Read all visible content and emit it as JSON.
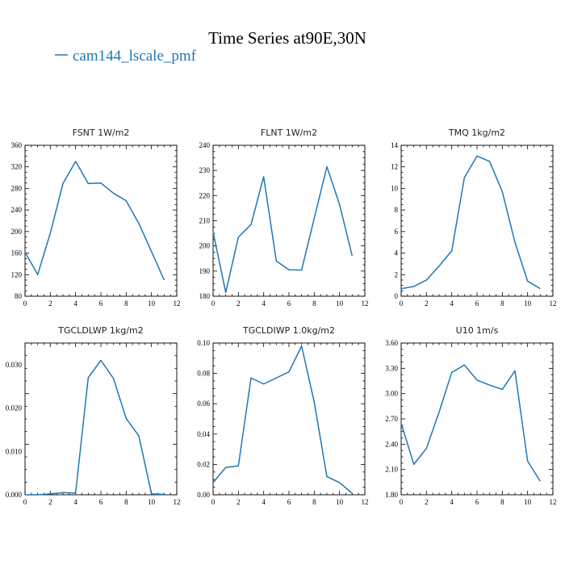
{
  "figure": {
    "title": "Time Series at90E,30N",
    "legend": {
      "label": "cam144_lscale_pmf",
      "color": "#1f77b4"
    }
  },
  "chart_data": [
    {
      "type": "line",
      "title": "FSNT   1W/m2",
      "xlim": [
        0,
        12
      ],
      "xticks": [
        0,
        2,
        4,
        6,
        8,
        10,
        12
      ],
      "xtick_labels": [
        "0",
        "2",
        "4",
        "6",
        "8",
        "10",
        "12"
      ],
      "ylim": [
        80,
        360
      ],
      "yticks": [
        80,
        120,
        160,
        200,
        240,
        280,
        320,
        360
      ],
      "ytick_labels": [
        "80",
        "120",
        "160",
        "200",
        "240",
        "280",
        "320",
        "360"
      ],
      "x": [
        0,
        1,
        2,
        3,
        4,
        5,
        6,
        7,
        8,
        9,
        10,
        11
      ],
      "series": [
        {
          "name": "cam144_lscale_pmf",
          "color": "#1f77b4",
          "values": [
            162,
            120,
            197,
            289,
            330,
            289,
            290,
            271,
            257,
            215,
            163,
            110
          ]
        }
      ]
    },
    {
      "type": "line",
      "title": "FLNT   1W/m2",
      "xlim": [
        0,
        12
      ],
      "xticks": [
        0,
        2,
        4,
        6,
        8,
        10,
        12
      ],
      "xtick_labels": [
        "0",
        "2",
        "4",
        "6",
        "8",
        "10",
        "12"
      ],
      "ylim": [
        180,
        240
      ],
      "yticks": [
        180,
        190,
        200,
        210,
        220,
        230,
        240
      ],
      "ytick_labels": [
        "180",
        "190",
        "200",
        "210",
        "220",
        "230",
        "240"
      ],
      "x": [
        0,
        1,
        2,
        3,
        4,
        5,
        6,
        7,
        8,
        9,
        10,
        11
      ],
      "series": [
        {
          "name": "cam144_lscale_pmf",
          "color": "#1f77b4",
          "values": [
            205.5,
            181.5,
            203.5,
            208.5,
            227.5,
            194,
            190.5,
            190.4,
            211,
            231.5,
            216.5,
            196
          ]
        }
      ]
    },
    {
      "type": "line",
      "title": "TMQ   1kg/m2",
      "xlim": [
        0,
        12
      ],
      "xticks": [
        0,
        2,
        4,
        6,
        8,
        10,
        12
      ],
      "xtick_labels": [
        "0",
        "2",
        "4",
        "6",
        "8",
        "10",
        "12"
      ],
      "ylim": [
        0,
        14
      ],
      "yticks": [
        0,
        2,
        4,
        6,
        8,
        10,
        12,
        14
      ],
      "ytick_labels": [
        "0",
        "2",
        "4",
        "6",
        "8",
        "10",
        "12",
        "14"
      ],
      "x": [
        0,
        1,
        2,
        3,
        4,
        5,
        6,
        7,
        8,
        9,
        10,
        11
      ],
      "series": [
        {
          "name": "cam144_lscale_pmf",
          "color": "#1f77b4",
          "values": [
            0.7,
            0.9,
            1.5,
            2.8,
            4.2,
            11.0,
            13.0,
            12.5,
            9.7,
            5.0,
            1.4,
            0.7
          ]
        }
      ]
    },
    {
      "type": "line",
      "title": "TGCLDLWP   1kg/m2",
      "xlim": [
        0,
        12
      ],
      "xticks": [
        0,
        2,
        4,
        6,
        8,
        10,
        12
      ],
      "xtick_labels": [
        "0",
        "2",
        "4",
        "6",
        "8",
        "10",
        "12"
      ],
      "ylim": [
        0,
        0.035
      ],
      "yticks": [
        0,
        0.01,
        0.02,
        0.03
      ],
      "ytick_labels": [
        "0.000",
        "0.010",
        "0.020",
        "0.030"
      ],
      "x": [
        0,
        1,
        2,
        3,
        4,
        5,
        6,
        7,
        8,
        9,
        10,
        11
      ],
      "series": [
        {
          "name": "cam144_lscale_pmf",
          "color": "#1f77b4",
          "values": [
            0.0,
            0.0,
            0.0002,
            0.0005,
            0.0004,
            0.027,
            0.031,
            0.0268,
            0.0176,
            0.0136,
            0.0002,
            0.0001
          ]
        }
      ]
    },
    {
      "type": "line",
      "title": "TGCLDIWP   1.0kg/m2",
      "xlim": [
        0,
        12
      ],
      "xticks": [
        0,
        2,
        4,
        6,
        8,
        10,
        12
      ],
      "xtick_labels": [
        "0",
        "2",
        "4",
        "6",
        "8",
        "10",
        "12"
      ],
      "ylim": [
        0,
        0.1
      ],
      "yticks": [
        0,
        0.02,
        0.04,
        0.06,
        0.08,
        0.1
      ],
      "ytick_labels": [
        "0.00",
        "0.02",
        "0.04",
        "0.06",
        "0.08",
        "0.10"
      ],
      "x": [
        0,
        1,
        2,
        3,
        4,
        5,
        6,
        7,
        8,
        9,
        10,
        11
      ],
      "series": [
        {
          "name": "cam144_lscale_pmf",
          "color": "#1f77b4",
          "values": [
            0.008,
            0.018,
            0.019,
            0.077,
            0.073,
            0.077,
            0.081,
            0.098,
            0.061,
            0.012,
            0.008,
            0.001
          ]
        }
      ]
    },
    {
      "type": "line",
      "title": "U10   1m/s",
      "xlim": [
        0,
        12
      ],
      "xticks": [
        0,
        2,
        4,
        6,
        8,
        10,
        12
      ],
      "xtick_labels": [
        "0",
        "2",
        "4",
        "6",
        "8",
        "10",
        "12"
      ],
      "ylim": [
        1.8,
        3.6
      ],
      "yticks": [
        1.8,
        2.1,
        2.4,
        2.7,
        3.0,
        3.3,
        3.6
      ],
      "ytick_labels": [
        "1.80",
        "2.10",
        "2.40",
        "2.70",
        "3.00",
        "3.30",
        "3.60"
      ],
      "x": [
        0,
        1,
        2,
        3,
        4,
        5,
        6,
        7,
        8,
        9,
        10,
        11
      ],
      "series": [
        {
          "name": "cam144_lscale_pmf",
          "color": "#1f77b4",
          "values": [
            2.65,
            2.16,
            2.35,
            2.78,
            3.25,
            3.34,
            3.16,
            3.1,
            3.05,
            3.27,
            2.2,
            1.96
          ]
        }
      ]
    }
  ]
}
